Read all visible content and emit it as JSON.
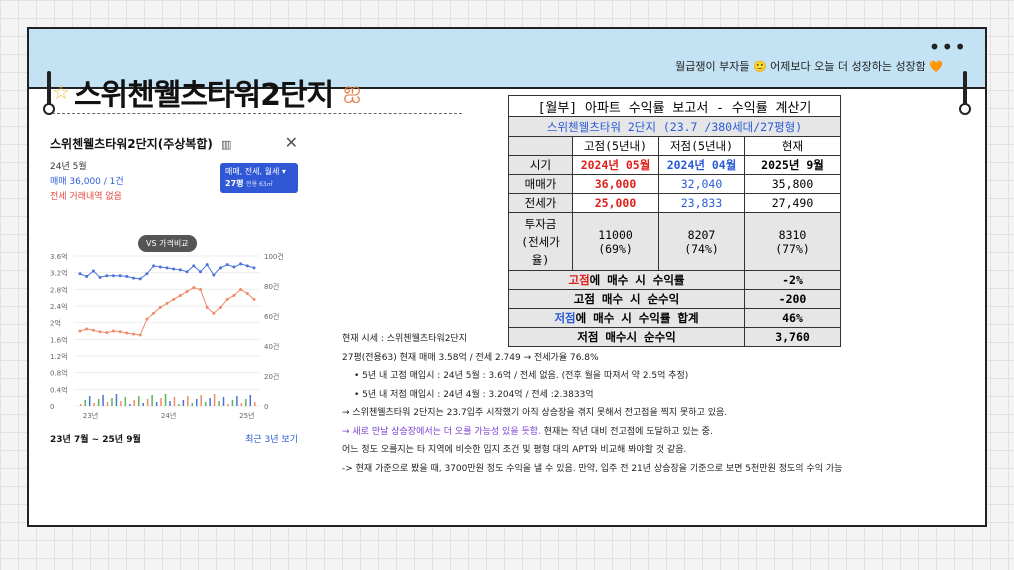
{
  "motto": "월급쟁이 부자들 🙂 어제보다 오늘 더 성장하는 성장함 🧡",
  "title": "스위첸웰츠타워2단지",
  "panel": {
    "title": "스위첸웰츠타워2단지(주상복합)",
    "date": "24년 5월",
    "sale": "매매 36,000 / 1건",
    "jeonse": "전세 거래내역 없음",
    "filter_line1": "매매, 전세, 월세 ▾",
    "filter_size": "27평",
    "filter_sub": "전용 63㎡",
    "vs_label": "VS 가격비교",
    "footer_range": "23년 7월 ~ 25년 9월",
    "footer_recent": "최근 3년 보기"
  },
  "chart_data": {
    "type": "line",
    "x_ticks": [
      "23년",
      "24년",
      "25년"
    ],
    "y_left_ticks": [
      "3.6억",
      "3.2억",
      "2.8억",
      "2.4억",
      "2억",
      "1.6억",
      "1.2억",
      "0.8억",
      "0.4억",
      "0"
    ],
    "y_right_ticks": [
      "100건",
      "80건",
      "60건",
      "40건",
      "20건",
      "0"
    ],
    "ylim": [
      0,
      3.8
    ],
    "series": [
      {
        "color": "#4a73d9",
        "values": [
          3.35,
          3.28,
          3.42,
          3.26,
          3.3,
          3.3,
          3.3,
          3.28,
          3.24,
          3.22,
          3.35,
          3.55,
          3.52,
          3.5,
          3.47,
          3.45,
          3.4,
          3.55,
          3.4,
          3.58,
          3.32,
          3.5,
          3.58,
          3.52,
          3.6,
          3.55,
          3.5
        ]
      },
      {
        "color": "#f08a6a",
        "values": [
          1.9,
          1.95,
          1.92,
          1.88,
          1.86,
          1.9,
          1.88,
          1.85,
          1.82,
          1.8,
          2.2,
          2.35,
          2.5,
          2.6,
          2.7,
          2.8,
          2.9,
          3.0,
          2.95,
          2.5,
          2.35,
          2.5,
          2.7,
          2.8,
          2.95,
          2.85,
          2.7
        ]
      }
    ]
  },
  "table": {
    "title": "[월부] 아파트 수익률 보고서 - 수익률 계산기",
    "subtitle": "스위첸웰츠타워 2단지 (23.7 /380세대/27평형)",
    "col_high": "고점(5년내)",
    "col_low": "저점(5년내)",
    "col_now": "현재",
    "row_time": "시기",
    "time_high": "2024년 05월",
    "time_low": "2024년 04월",
    "time_now": "2025년 9월",
    "row_sale": "매매가",
    "sale_high": "36,000",
    "sale_low": "32,040",
    "sale_now": "35,800",
    "row_jeonse": "전세가",
    "jeonse_high": "25,000",
    "jeonse_low": "23,833",
    "jeonse_now": "27,490",
    "row_invest": "투자금\n(전세가\n율)",
    "invest_high": "11000\n(69%)",
    "invest_low": "8207\n(74%)",
    "invest_now": "8310\n(77%)",
    "r1_hl": "고점",
    "r1_rest": "에 매수 시 수익률",
    "r1_val": "-2%",
    "r2_label": "고점 매수 시 순수익",
    "r2_val": "-200",
    "r3_hl": "저점",
    "r3_rest": "에 매수 시 수익률 합계",
    "r3_val": "46%",
    "r4_label": "저점 매수시 순수익",
    "r4_val": "3,760"
  },
  "notes": {
    "l1": "현재 시세 : 스위첸웰츠타워2단지",
    "l2": "27평(전용63) 현재 매매  3.58억 / 전세 2.749  → 전세가율 76.8%",
    "l3": "•  5년 내 고점 매입시 :  24년 5월 : 3.6억 / 전세 없음. (전후 월을 따져서 약 2.5억 추정)",
    "l4": "•  5년 내 저점 매입시 : 24년 4월 : 3.204억 / 전세 :2.3833억",
    "l5": "→ 스위첸웰츠타워 2단지는 23.7입주 시작했기 아직 상승장을 겪지 못해서 전고점을 찍지 못하고 있음.",
    "l6_purple": "→ 새로 만날 상승장에서는 더 오를 가능성 있을 듯함.",
    "l6_rest": "  현재는 작년 대비 전고점에 도달하고 있는 중.",
    "l7": "어느 정도 오를지는 타 지역에 비슷한 입지 조건 및 평형 대의 APT와 비교해 봐야할 것 같음.",
    "l8": "-> 현재 가준으로 봤을 때, 3700만원 정도 수익을 낼 수 있음.  만약, 입주 전 21년 상승장을 기준으로 보면 5천만원 정도의 수익 가능"
  }
}
